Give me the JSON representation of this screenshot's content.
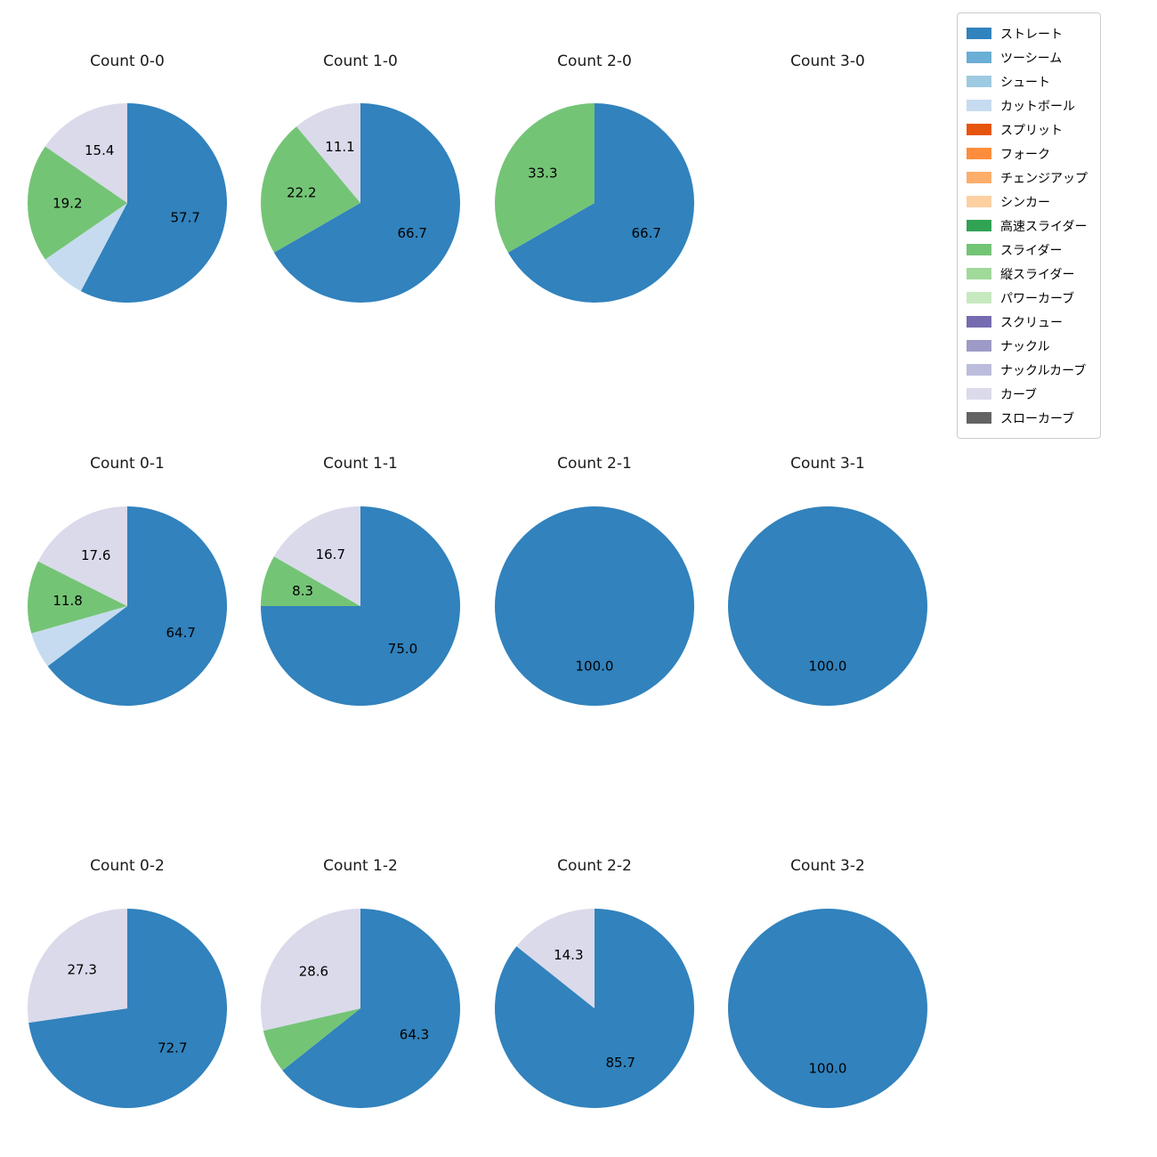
{
  "figure": {
    "background": "#ffffff"
  },
  "legend": {
    "items": [
      {
        "label": "ストレート",
        "color": "#3182bd"
      },
      {
        "label": "ツーシーム",
        "color": "#6baed6"
      },
      {
        "label": "シュート",
        "color": "#9ecae1"
      },
      {
        "label": "カットボール",
        "color": "#c6dbef"
      },
      {
        "label": "スプリット",
        "color": "#e6550d"
      },
      {
        "label": "フォーク",
        "color": "#fd8d3c"
      },
      {
        "label": "チェンジアップ",
        "color": "#fdae6b"
      },
      {
        "label": "シンカー",
        "color": "#fdd0a2"
      },
      {
        "label": "高速スライダー",
        "color": "#31a354"
      },
      {
        "label": "スライダー",
        "color": "#74c476"
      },
      {
        "label": "縦スライダー",
        "color": "#a1d99b"
      },
      {
        "label": "パワーカーブ",
        "color": "#c7e9c0"
      },
      {
        "label": "スクリュー",
        "color": "#756bb1"
      },
      {
        "label": "ナックル",
        "color": "#9e9ac8"
      },
      {
        "label": "ナックルカーブ",
        "color": "#bcbddc"
      },
      {
        "label": "カーブ",
        "color": "#dadaeb"
      },
      {
        "label": "スローカーブ",
        "color": "#636363"
      }
    ],
    "position": "upper right"
  },
  "chart_data": [
    {
      "type": "pie",
      "title": "Count 0-0",
      "slices": [
        {
          "label": "ストレート",
          "value": 57.7,
          "pct_label": "57.7"
        },
        {
          "label": "カットボール",
          "value": 7.7,
          "pct_label": ""
        },
        {
          "label": "スライダー",
          "value": 19.2,
          "pct_label": "19.2"
        },
        {
          "label": "カーブ",
          "value": 15.4,
          "pct_label": "15.4"
        }
      ]
    },
    {
      "type": "pie",
      "title": "Count 1-0",
      "slices": [
        {
          "label": "ストレート",
          "value": 66.7,
          "pct_label": "66.7"
        },
        {
          "label": "スライダー",
          "value": 22.2,
          "pct_label": "22.2"
        },
        {
          "label": "カーブ",
          "value": 11.1,
          "pct_label": "11.1"
        }
      ]
    },
    {
      "type": "pie",
      "title": "Count 2-0",
      "slices": [
        {
          "label": "ストレート",
          "value": 66.7,
          "pct_label": "66.7"
        },
        {
          "label": "スライダー",
          "value": 33.3,
          "pct_label": "33.3"
        }
      ]
    },
    {
      "type": "pie",
      "title": "Count 3-0",
      "slices": []
    },
    {
      "type": "pie",
      "title": "Count 0-1",
      "slices": [
        {
          "label": "ストレート",
          "value": 64.7,
          "pct_label": "64.7"
        },
        {
          "label": "カットボール",
          "value": 5.9,
          "pct_label": ""
        },
        {
          "label": "スライダー",
          "value": 11.8,
          "pct_label": "11.8"
        },
        {
          "label": "カーブ",
          "value": 17.6,
          "pct_label": "17.6"
        }
      ]
    },
    {
      "type": "pie",
      "title": "Count 1-1",
      "slices": [
        {
          "label": "ストレート",
          "value": 75.0,
          "pct_label": "75.0"
        },
        {
          "label": "スライダー",
          "value": 8.3,
          "pct_label": "8.3"
        },
        {
          "label": "カーブ",
          "value": 16.7,
          "pct_label": "16.7"
        }
      ]
    },
    {
      "type": "pie",
      "title": "Count 2-1",
      "slices": [
        {
          "label": "ストレート",
          "value": 100.0,
          "pct_label": "100.0"
        }
      ]
    },
    {
      "type": "pie",
      "title": "Count 3-1",
      "slices": [
        {
          "label": "ストレート",
          "value": 100.0,
          "pct_label": "100.0"
        }
      ]
    },
    {
      "type": "pie",
      "title": "Count 0-2",
      "slices": [
        {
          "label": "ストレート",
          "value": 72.7,
          "pct_label": "72.7"
        },
        {
          "label": "カーブ",
          "value": 27.3,
          "pct_label": "27.3"
        }
      ]
    },
    {
      "type": "pie",
      "title": "Count 1-2",
      "slices": [
        {
          "label": "ストレート",
          "value": 64.3,
          "pct_label": "64.3"
        },
        {
          "label": "スライダー",
          "value": 7.1,
          "pct_label": ""
        },
        {
          "label": "カーブ",
          "value": 28.6,
          "pct_label": "28.6"
        }
      ]
    },
    {
      "type": "pie",
      "title": "Count 2-2",
      "slices": [
        {
          "label": "ストレート",
          "value": 85.7,
          "pct_label": "85.7"
        },
        {
          "label": "カーブ",
          "value": 14.3,
          "pct_label": "14.3"
        }
      ]
    },
    {
      "type": "pie",
      "title": "Count 3-2",
      "slices": [
        {
          "label": "ストレート",
          "value": 100.0,
          "pct_label": "100.0"
        }
      ]
    }
  ]
}
